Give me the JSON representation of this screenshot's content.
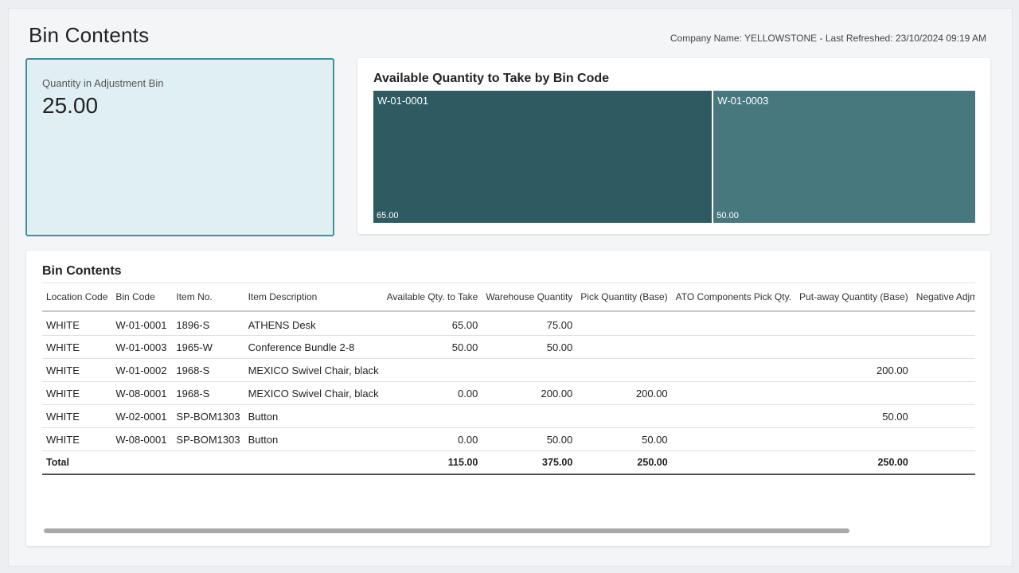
{
  "page": {
    "title": "Bin Contents",
    "meta": "Company Name: YELLOWSTONE - Last Refreshed: 23/10/2024 09:19 AM"
  },
  "kpi": {
    "label": "Quantity in Adjustment Bin",
    "value": "25.00"
  },
  "treemap": {
    "title": "Available Quantity to Take by Bin Code",
    "colors": [
      "#2e5a61",
      "#47787e"
    ],
    "tiles": [
      {
        "label": "W-01-0001",
        "value": 65,
        "value_text": "65.00"
      },
      {
        "label": "W-01-0003",
        "value": 50,
        "value_text": "50.00"
      }
    ]
  },
  "table": {
    "title": "Bin Contents",
    "columns": [
      "Location Code",
      "Bin Code",
      "Item No.",
      "Item Description",
      "Available Qty. to Take",
      "Warehouse Quantity",
      "Pick Quantity (Base)",
      "ATO Components Pick Qty.",
      "Put-away Quantity (Base)",
      "Negative Adjmt. Qty."
    ],
    "numeric_from": 4,
    "rows": [
      [
        "WHITE",
        "W-01-0001",
        "1896-S",
        "ATHENS Desk",
        "65.00",
        "75.00",
        "",
        "",
        "",
        ""
      ],
      [
        "WHITE",
        "W-01-0003",
        "1965-W",
        "Conference Bundle 2-8",
        "50.00",
        "50.00",
        "",
        "",
        "",
        ""
      ],
      [
        "WHITE",
        "W-01-0002",
        "1968-S",
        "MEXICO Swivel Chair, black",
        "",
        "",
        "",
        "",
        "200.00",
        ""
      ],
      [
        "WHITE",
        "W-08-0001",
        "1968-S",
        "MEXICO Swivel Chair, black",
        "0.00",
        "200.00",
        "200.00",
        "",
        "",
        ""
      ],
      [
        "WHITE",
        "W-02-0001",
        "SP-BOM1303",
        "Button",
        "",
        "",
        "",
        "",
        "50.00",
        ""
      ],
      [
        "WHITE",
        "W-08-0001",
        "SP-BOM1303",
        "Button",
        "0.00",
        "50.00",
        "50.00",
        "",
        "",
        ""
      ]
    ],
    "total": [
      "Total",
      "",
      "",
      "",
      "115.00",
      "375.00",
      "250.00",
      "",
      "250.00",
      ""
    ]
  }
}
